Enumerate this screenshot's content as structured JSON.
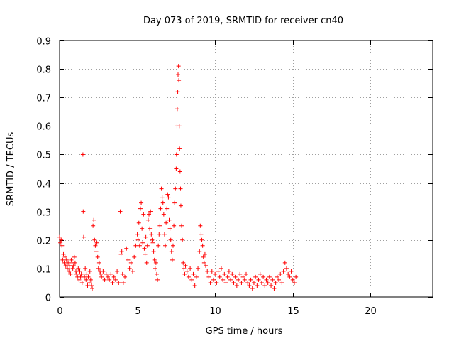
{
  "chart_data": {
    "type": "scatter",
    "title": "Day 073 of 2019, SRMTID for receiver cn40",
    "xlabel": "GPS time / hours",
    "ylabel": "SRMTID / TECUs",
    "xlim": [
      0,
      24
    ],
    "ylim": [
      0,
      0.9
    ],
    "xticks": [
      0,
      5,
      10,
      15,
      20
    ],
    "yticks": [
      0,
      0.1,
      0.2,
      0.3,
      0.4,
      0.5,
      0.6,
      0.7,
      0.8,
      0.9
    ],
    "xtick_labels": [
      "0",
      "5",
      "10",
      "15",
      "20"
    ],
    "ytick_labels": [
      "0",
      "0.1",
      "0.2",
      "0.3",
      "0.4",
      "0.5",
      "0.6",
      "0.7",
      "0.8",
      "0.9"
    ],
    "grid": true,
    "marker": "+",
    "color": "#ff0000",
    "series": [
      {
        "name": "SRMTID",
        "points": [
          [
            0.0,
            0.21
          ],
          [
            0.05,
            0.19
          ],
          [
            0.1,
            0.2
          ],
          [
            0.15,
            0.18
          ],
          [
            0.2,
            0.13
          ],
          [
            0.25,
            0.15
          ],
          [
            0.3,
            0.12
          ],
          [
            0.35,
            0.14
          ],
          [
            0.4,
            0.11
          ],
          [
            0.45,
            0.13
          ],
          [
            0.5,
            0.1
          ],
          [
            0.55,
            0.12
          ],
          [
            0.6,
            0.09
          ],
          [
            0.65,
            0.11
          ],
          [
            0.7,
            0.08
          ],
          [
            0.75,
            0.13
          ],
          [
            0.8,
            0.12
          ],
          [
            0.85,
            0.1
          ],
          [
            0.9,
            0.11
          ],
          [
            0.95,
            0.14
          ],
          [
            1.0,
            0.12
          ],
          [
            1.05,
            0.09
          ],
          [
            1.1,
            0.08
          ],
          [
            1.15,
            0.07
          ],
          [
            1.2,
            0.1
          ],
          [
            1.25,
            0.06
          ],
          [
            1.3,
            0.09
          ],
          [
            1.35,
            0.07
          ],
          [
            1.4,
            0.08
          ],
          [
            1.45,
            0.05
          ],
          [
            1.5,
            0.5
          ],
          [
            1.52,
            0.3
          ],
          [
            1.55,
            0.21
          ],
          [
            1.6,
            0.07
          ],
          [
            1.65,
            0.1
          ],
          [
            1.7,
            0.06
          ],
          [
            1.75,
            0.08
          ],
          [
            1.8,
            0.04
          ],
          [
            1.85,
            0.07
          ],
          [
            1.9,
            0.05
          ],
          [
            1.95,
            0.09
          ],
          [
            2.0,
            0.06
          ],
          [
            2.05,
            0.04
          ],
          [
            2.1,
            0.03
          ],
          [
            2.15,
            0.25
          ],
          [
            2.2,
            0.27
          ],
          [
            2.25,
            0.2
          ],
          [
            2.3,
            0.18
          ],
          [
            2.35,
            0.16
          ],
          [
            2.4,
            0.19
          ],
          [
            2.45,
            0.14
          ],
          [
            2.5,
            0.1
          ],
          [
            2.55,
            0.12
          ],
          [
            2.6,
            0.09
          ],
          [
            2.65,
            0.08
          ],
          [
            2.7,
            0.07
          ],
          [
            2.8,
            0.09
          ],
          [
            2.9,
            0.06
          ],
          [
            3.0,
            0.08
          ],
          [
            3.1,
            0.07
          ],
          [
            3.2,
            0.06
          ],
          [
            3.3,
            0.08
          ],
          [
            3.4,
            0.05
          ],
          [
            3.5,
            0.07
          ],
          [
            3.6,
            0.06
          ],
          [
            3.7,
            0.09
          ],
          [
            3.8,
            0.05
          ],
          [
            3.9,
            0.3
          ],
          [
            3.95,
            0.15
          ],
          [
            4.0,
            0.16
          ],
          [
            4.05,
            0.08
          ],
          [
            4.1,
            0.05
          ],
          [
            4.2,
            0.07
          ],
          [
            4.3,
            0.17
          ],
          [
            4.4,
            0.13
          ],
          [
            4.5,
            0.1
          ],
          [
            4.6,
            0.12
          ],
          [
            4.7,
            0.09
          ],
          [
            4.8,
            0.14
          ],
          [
            4.9,
            0.18
          ],
          [
            5.0,
            0.22
          ],
          [
            5.05,
            0.2
          ],
          [
            5.1,
            0.26
          ],
          [
            5.15,
            0.18
          ],
          [
            5.2,
            0.31
          ],
          [
            5.25,
            0.33
          ],
          [
            5.3,
            0.24
          ],
          [
            5.35,
            0.19
          ],
          [
            5.4,
            0.29
          ],
          [
            5.45,
            0.17
          ],
          [
            5.5,
            0.15
          ],
          [
            5.55,
            0.21
          ],
          [
            5.6,
            0.12
          ],
          [
            5.65,
            0.18
          ],
          [
            5.7,
            0.27
          ],
          [
            5.75,
            0.29
          ],
          [
            5.8,
            0.24
          ],
          [
            5.85,
            0.3
          ],
          [
            5.9,
            0.22
          ],
          [
            5.95,
            0.2
          ],
          [
            6.0,
            0.19
          ],
          [
            6.05,
            0.16
          ],
          [
            6.1,
            0.13
          ],
          [
            6.15,
            0.1
          ],
          [
            6.2,
            0.12
          ],
          [
            6.25,
            0.08
          ],
          [
            6.3,
            0.06
          ],
          [
            6.35,
            0.18
          ],
          [
            6.4,
            0.22
          ],
          [
            6.45,
            0.25
          ],
          [
            6.5,
            0.31
          ],
          [
            6.55,
            0.38
          ],
          [
            6.6,
            0.35
          ],
          [
            6.65,
            0.33
          ],
          [
            6.7,
            0.29
          ],
          [
            6.75,
            0.22
          ],
          [
            6.8,
            0.18
          ],
          [
            6.85,
            0.26
          ],
          [
            6.9,
            0.31
          ],
          [
            6.95,
            0.36
          ],
          [
            7.0,
            0.35
          ],
          [
            7.05,
            0.27
          ],
          [
            7.1,
            0.24
          ],
          [
            7.15,
            0.2
          ],
          [
            7.2,
            0.16
          ],
          [
            7.25,
            0.13
          ],
          [
            7.3,
            0.18
          ],
          [
            7.35,
            0.25
          ],
          [
            7.4,
            0.33
          ],
          [
            7.45,
            0.38
          ],
          [
            7.5,
            0.45
          ],
          [
            7.52,
            0.5
          ],
          [
            7.55,
            0.6
          ],
          [
            7.57,
            0.66
          ],
          [
            7.6,
            0.72
          ],
          [
            7.62,
            0.78
          ],
          [
            7.65,
            0.81
          ],
          [
            7.67,
            0.76
          ],
          [
            7.7,
            0.6
          ],
          [
            7.72,
            0.52
          ],
          [
            7.75,
            0.44
          ],
          [
            7.78,
            0.38
          ],
          [
            7.8,
            0.32
          ],
          [
            7.85,
            0.25
          ],
          [
            7.9,
            0.2
          ],
          [
            7.95,
            0.12
          ],
          [
            8.0,
            0.1
          ],
          [
            8.05,
            0.08
          ],
          [
            8.1,
            0.11
          ],
          [
            8.2,
            0.09
          ],
          [
            8.3,
            0.07
          ],
          [
            8.4,
            0.1
          ],
          [
            8.5,
            0.06
          ],
          [
            8.6,
            0.08
          ],
          [
            8.7,
            0.04
          ],
          [
            8.8,
            0.07
          ],
          [
            8.9,
            0.1
          ],
          [
            9.0,
            0.16
          ],
          [
            9.05,
            0.25
          ],
          [
            9.1,
            0.22
          ],
          [
            9.15,
            0.2
          ],
          [
            9.2,
            0.18
          ],
          [
            9.25,
            0.14
          ],
          [
            9.3,
            0.12
          ],
          [
            9.35,
            0.15
          ],
          [
            9.4,
            0.11
          ],
          [
            9.5,
            0.09
          ],
          [
            9.6,
            0.07
          ],
          [
            9.7,
            0.05
          ],
          [
            9.8,
            0.09
          ],
          [
            9.9,
            0.06
          ],
          [
            10.0,
            0.08
          ],
          [
            10.1,
            0.05
          ],
          [
            10.2,
            0.09
          ],
          [
            10.3,
            0.07
          ],
          [
            10.4,
            0.1
          ],
          [
            10.5,
            0.06
          ],
          [
            10.6,
            0.08
          ],
          [
            10.7,
            0.05
          ],
          [
            10.8,
            0.07
          ],
          [
            10.9,
            0.09
          ],
          [
            11.0,
            0.06
          ],
          [
            11.1,
            0.08
          ],
          [
            11.2,
            0.05
          ],
          [
            11.3,
            0.07
          ],
          [
            11.4,
            0.04
          ],
          [
            11.5,
            0.06
          ],
          [
            11.6,
            0.08
          ],
          [
            11.7,
            0.05
          ],
          [
            11.8,
            0.07
          ],
          [
            11.9,
            0.06
          ],
          [
            12.0,
            0.08
          ],
          [
            12.1,
            0.05
          ],
          [
            12.2,
            0.04
          ],
          [
            12.3,
            0.06
          ],
          [
            12.4,
            0.03
          ],
          [
            12.5,
            0.05
          ],
          [
            12.6,
            0.07
          ],
          [
            12.7,
            0.04
          ],
          [
            12.8,
            0.06
          ],
          [
            12.9,
            0.08
          ],
          [
            13.0,
            0.05
          ],
          [
            13.1,
            0.07
          ],
          [
            13.2,
            0.04
          ],
          [
            13.3,
            0.06
          ],
          [
            13.4,
            0.05
          ],
          [
            13.5,
            0.07
          ],
          [
            13.6,
            0.04
          ],
          [
            13.7,
            0.06
          ],
          [
            13.8,
            0.03
          ],
          [
            13.9,
            0.05
          ],
          [
            14.0,
            0.07
          ],
          [
            14.1,
            0.06
          ],
          [
            14.2,
            0.08
          ],
          [
            14.3,
            0.05
          ],
          [
            14.4,
            0.09
          ],
          [
            14.5,
            0.12
          ],
          [
            14.6,
            0.1
          ],
          [
            14.7,
            0.08
          ],
          [
            14.8,
            0.07
          ],
          [
            14.9,
            0.09
          ],
          [
            15.0,
            0.06
          ],
          [
            15.1,
            0.05
          ],
          [
            15.2,
            0.07
          ]
        ]
      }
    ]
  }
}
